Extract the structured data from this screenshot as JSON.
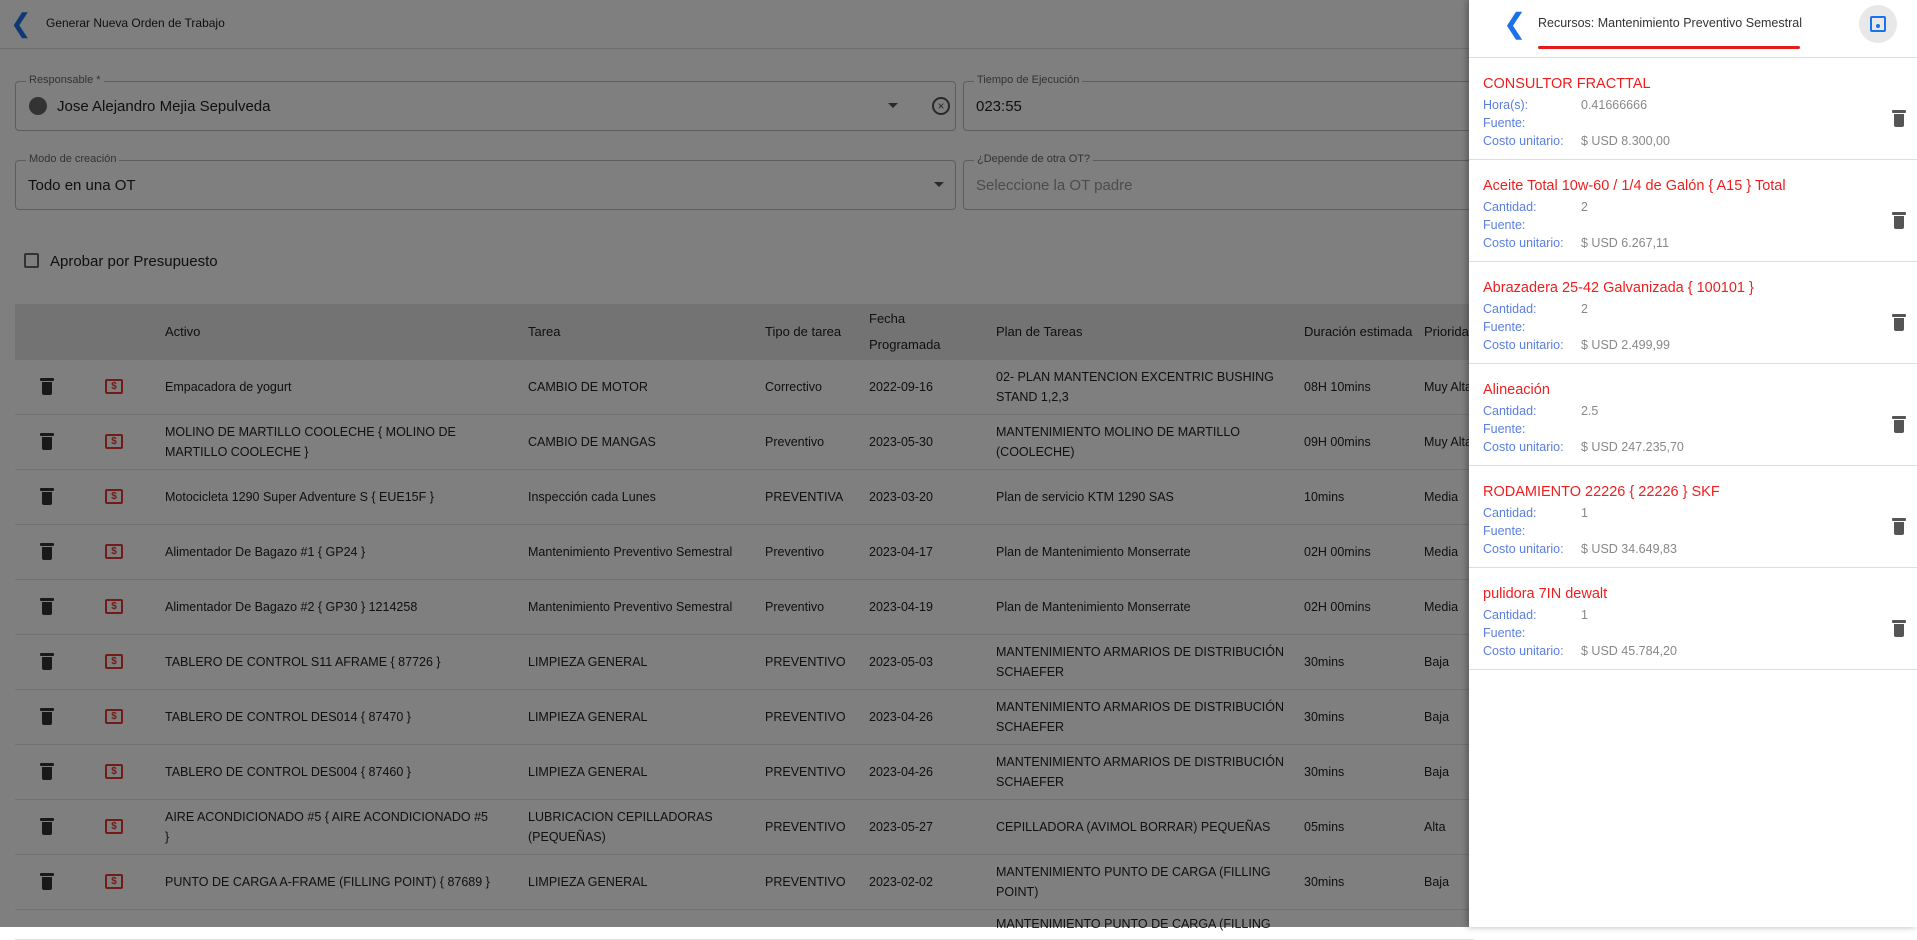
{
  "header": {
    "title": "Generar Nueva Orden de Trabajo"
  },
  "form": {
    "responsable": {
      "label": "Responsable *",
      "value": "Jose Alejandro Mejia Sepulveda"
    },
    "tiempo": {
      "label": "Tiempo de Ejecución",
      "value": "023:55"
    },
    "modo": {
      "label": "Modo de creación",
      "value": "Todo en una OT"
    },
    "depende": {
      "label": "¿Depende de otra OT?",
      "placeholder": "Seleccione la OT padre"
    },
    "aprobar": {
      "label": "Aprobar por Presupuesto",
      "checked": false
    }
  },
  "table": {
    "headers": [
      "Activo",
      "Tarea",
      "Tipo de tarea",
      "Fecha Programada",
      "Plan de Tareas",
      "Duración estimada",
      "Prioridad"
    ],
    "rows": [
      [
        "Empacadora de yogurt",
        "CAMBIO DE MOTOR",
        "Correctivo",
        "2022-09-16",
        "02- PLAN MANTENCION EXCENTRIC BUSHING STAND 1,2,3",
        "08H 10mins",
        "Muy Alta"
      ],
      [
        "MOLINO DE MARTILLO COOLECHE { MOLINO DE MARTILLO COOLECHE }",
        "CAMBIO DE MANGAS",
        "Preventivo",
        "2023-05-30",
        "MANTENIMIENTO MOLINO DE MARTILLO (COOLECHE)",
        "09H 00mins",
        "Muy Alta"
      ],
      [
        "Motocicleta 1290 Super Adventure S { EUE15F }",
        "Inspección cada Lunes",
        "PREVENTIVA",
        "2023-03-20",
        "Plan de servicio KTM 1290 SAS",
        "10mins",
        "Media"
      ],
      [
        "Alimentador De Bagazo #1 { GP24 }",
        "Mantenimiento Preventivo Semestral",
        "Preventivo",
        "2023-04-17",
        "Plan de Mantenimiento Monserrate",
        "02H 00mins",
        "Media"
      ],
      [
        "Alimentador De Bagazo #2 { GP30 } 1214258",
        "Mantenimiento Preventivo Semestral",
        "Preventivo",
        "2023-04-19",
        "Plan de Mantenimiento Monserrate",
        "02H 00mins",
        "Media"
      ],
      [
        "TABLERO DE CONTROL S11 AFRAME { 87726 }",
        "LIMPIEZA GENERAL",
        "PREVENTIVO",
        "2023-05-03",
        "MANTENIMIENTO ARMARIOS DE DISTRIBUCIÓN SCHAEFER",
        "30mins",
        "Baja"
      ],
      [
        "TABLERO DE CONTROL DES014 { 87470 }",
        "LIMPIEZA GENERAL",
        "PREVENTIVO",
        "2023-04-26",
        "MANTENIMIENTO ARMARIOS DE DISTRIBUCIÓN SCHAEFER",
        "30mins",
        "Baja"
      ],
      [
        "TABLERO DE CONTROL DES004 { 87460 }",
        "LIMPIEZA GENERAL",
        "PREVENTIVO",
        "2023-04-26",
        "MANTENIMIENTO ARMARIOS DE DISTRIBUCIÓN SCHAEFER",
        "30mins",
        "Baja"
      ],
      [
        "AIRE ACONDICIONADO #5 { AIRE ACONDICIONADO #5 }",
        "LUBRICACION CEPILLADORAS (PEQUEÑAS)",
        "PREVENTIVO",
        "2023-05-27",
        "CEPILLADORA (AVIMOL BORRAR) PEQUEÑAS",
        "05mins",
        "Alta"
      ],
      [
        "PUNTO DE CARGA A-FRAME (FILLING POINT) { 87689 }",
        "LIMPIEZA GENERAL",
        "PREVENTIVO",
        "2023-02-02",
        "MANTENIMIENTO PUNTO DE CARGA (FILLING POINT)",
        "30mins",
        "Baja"
      ],
      [
        "",
        "",
        "",
        "",
        "MANTENIMIENTO PUNTO DE CARGA (FILLING",
        "",
        ""
      ]
    ]
  },
  "panel": {
    "title": "Recursos: Mantenimiento Preventivo Semestral",
    "accent": "#e21d1d",
    "items": [
      {
        "name": "CONSULTOR FRACTTAL",
        "qty_label": "Hora(s):",
        "qty": "0.41666666",
        "source_label": "Fuente:",
        "cost_label": "Costo unitario:",
        "cost": "$ USD 8.300,00"
      },
      {
        "name": "Aceite Total 10w-60 / 1/4 de Galón { A15 } Total",
        "qty_label": "Cantidad:",
        "qty": "2",
        "source_label": "Fuente:",
        "cost_label": "Costo unitario:",
        "cost": "$ USD 6.267,11"
      },
      {
        "name": "Abrazadera 25-42 Galvanizada { 100101 }",
        "qty_label": "Cantidad:",
        "qty": "2",
        "source_label": "Fuente:",
        "cost_label": "Costo unitario:",
        "cost": "$ USD 2.499,99"
      },
      {
        "name": "Alineación",
        "qty_label": "Cantidad:",
        "qty": "2.5",
        "source_label": "Fuente:",
        "cost_label": "Costo unitario:",
        "cost": "$ USD 247.235,70"
      },
      {
        "name": "RODAMIENTO 22226 { 22226 } SKF",
        "qty_label": "Cantidad:",
        "qty": "1",
        "source_label": "Fuente:",
        "cost_label": "Costo unitario:",
        "cost": "$ USD 34.649,83"
      },
      {
        "name": "pulidora 7IN dewalt",
        "qty_label": "Cantidad:",
        "qty": "1",
        "source_label": "Fuente:",
        "cost_label": "Costo unitario:",
        "cost": "$ USD 45.784,20"
      }
    ]
  }
}
